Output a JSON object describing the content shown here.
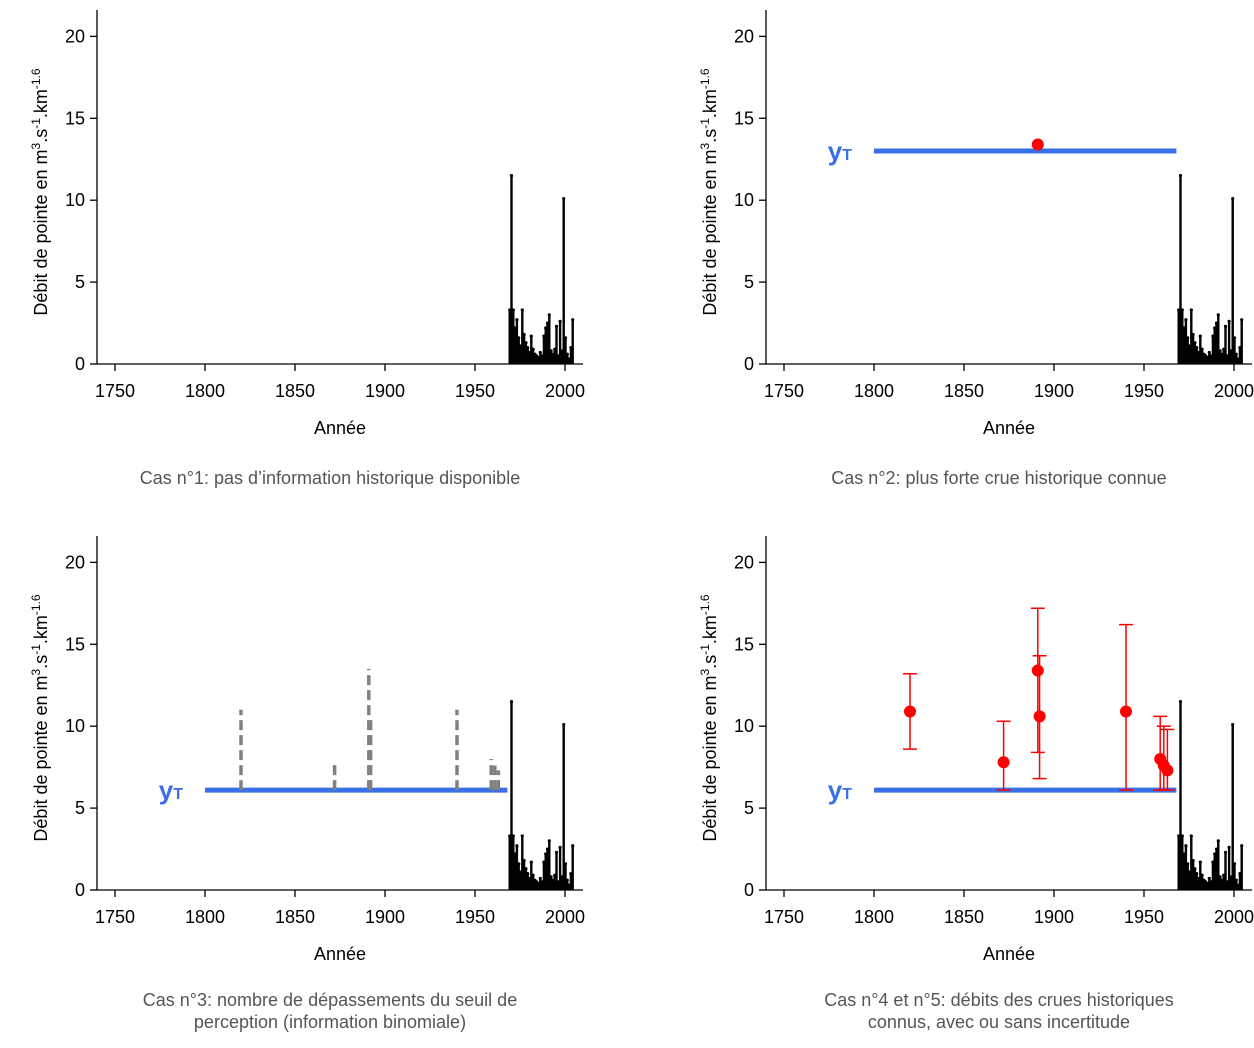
{
  "colors": {
    "observed": "#000000",
    "threshold": "#3a6fe8",
    "historic_point": "#ff0000",
    "exceedance": "#808080"
  },
  "chart_data": [
    {
      "type": "bar",
      "panel": 1,
      "caption": [
        "Cas n°1: pas d’information historique disponible"
      ],
      "xlabel": "Année",
      "ylabel": "Débit de pointe en m3.s-1.km-1.6",
      "xlim": [
        1740,
        2010
      ],
      "ylim": [
        0,
        21
      ],
      "xticks": [
        1750,
        1800,
        1850,
        1900,
        1950,
        2000
      ],
      "yticks": [
        0,
        5,
        10,
        15,
        20
      ],
      "observed": {
        "years": [
          1969,
          1970,
          1971,
          1972,
          1973,
          1974,
          1975,
          1976,
          1977,
          1978,
          1979,
          1980,
          1981,
          1982,
          1983,
          1984,
          1985,
          1986,
          1987,
          1988,
          1989,
          1990,
          1991,
          1992,
          1993,
          1994,
          1995,
          1996,
          1997,
          1998,
          1999,
          2000,
          2001,
          2002,
          2003,
          2004
        ],
        "values": [
          3.3,
          11.5,
          3.3,
          2.2,
          2.7,
          1.6,
          1.1,
          3.3,
          1.8,
          1.3,
          1.0,
          0.7,
          1.7,
          0.9,
          0.6,
          0.5,
          0.4,
          0.7,
          0.5,
          1.7,
          2.2,
          2.5,
          3.0,
          0.8,
          0.6,
          0.9,
          2.3,
          0.5,
          2.6,
          0.8,
          10.1,
          1.6,
          0.6,
          0.3,
          1.0,
          2.7
        ]
      }
    },
    {
      "type": "bar",
      "panel": 2,
      "caption": [
        "Cas n°2: plus forte crue historique connue"
      ],
      "xlabel": "Année",
      "ylabel": "Débit de pointe en m3.s-1.km-1.6",
      "xlim": [
        1740,
        2010
      ],
      "ylim": [
        0,
        21
      ],
      "xticks": [
        1750,
        1800,
        1850,
        1900,
        1950,
        2000
      ],
      "yticks": [
        0,
        5,
        10,
        15,
        20
      ],
      "threshold": {
        "label": "yT",
        "value": 13,
        "x_range": [
          1800,
          1968
        ]
      },
      "historic_points": [
        {
          "year": 1891,
          "value": 13.4
        }
      ],
      "observed": {
        "years": [
          1969,
          1970,
          1971,
          1972,
          1973,
          1974,
          1975,
          1976,
          1977,
          1978,
          1979,
          1980,
          1981,
          1982,
          1983,
          1984,
          1985,
          1986,
          1987,
          1988,
          1989,
          1990,
          1991,
          1992,
          1993,
          1994,
          1995,
          1996,
          1997,
          1998,
          1999,
          2000,
          2001,
          2002,
          2003,
          2004
        ],
        "values": [
          3.3,
          11.5,
          3.3,
          2.2,
          2.7,
          1.6,
          1.1,
          3.3,
          1.8,
          1.3,
          1.0,
          0.7,
          1.7,
          0.9,
          0.6,
          0.5,
          0.4,
          0.7,
          0.5,
          1.7,
          2.2,
          2.5,
          3.0,
          0.8,
          0.6,
          0.9,
          2.3,
          0.5,
          2.6,
          0.8,
          10.1,
          1.6,
          0.6,
          0.3,
          1.0,
          2.7
        ]
      }
    },
    {
      "type": "bar",
      "panel": 3,
      "caption": [
        "Cas n°3: nombre de dépassements du seuil de",
        "perception (information binomiale)"
      ],
      "xlabel": "Année",
      "ylabel": "Débit de pointe en m3.s-1.km-1.6",
      "xlim": [
        1740,
        2010
      ],
      "ylim": [
        0,
        21
      ],
      "xticks": [
        1750,
        1800,
        1850,
        1900,
        1950,
        2000
      ],
      "yticks": [
        0,
        5,
        10,
        15,
        20
      ],
      "threshold": {
        "label": "yT",
        "value": 6.1,
        "x_range": [
          1800,
          1968
        ]
      },
      "exceedances": [
        {
          "year": 1820,
          "value": 11.0
        },
        {
          "year": 1872,
          "value": 7.8
        },
        {
          "year": 1891,
          "value": 13.5
        },
        {
          "year": 1892,
          "value": 10.6
        },
        {
          "year": 1940,
          "value": 11.0
        },
        {
          "year": 1959,
          "value": 8.0
        },
        {
          "year": 1961,
          "value": 7.6
        },
        {
          "year": 1963,
          "value": 7.3
        }
      ],
      "observed": {
        "years": [
          1969,
          1970,
          1971,
          1972,
          1973,
          1974,
          1975,
          1976,
          1977,
          1978,
          1979,
          1980,
          1981,
          1982,
          1983,
          1984,
          1985,
          1986,
          1987,
          1988,
          1989,
          1990,
          1991,
          1992,
          1993,
          1994,
          1995,
          1996,
          1997,
          1998,
          1999,
          2000,
          2001,
          2002,
          2003,
          2004
        ],
        "values": [
          3.3,
          11.5,
          3.3,
          2.2,
          2.7,
          1.6,
          1.1,
          3.3,
          1.8,
          1.3,
          1.0,
          0.7,
          1.7,
          0.9,
          0.6,
          0.5,
          0.4,
          0.7,
          0.5,
          1.7,
          2.2,
          2.5,
          3.0,
          0.8,
          0.6,
          0.9,
          2.3,
          0.5,
          2.6,
          0.8,
          10.1,
          1.6,
          0.6,
          0.3,
          1.0,
          2.7
        ]
      }
    },
    {
      "type": "bar",
      "panel": 4,
      "caption": [
        "Cas n°4 et n°5: débits des crues historiques",
        "connus, avec ou sans incertitude"
      ],
      "xlabel": "Année",
      "ylabel": "Débit de pointe en m3.s-1.km-1.6",
      "xlim": [
        1740,
        2010
      ],
      "ylim": [
        0,
        21
      ],
      "xticks": [
        1750,
        1800,
        1850,
        1900,
        1950,
        2000
      ],
      "yticks": [
        0,
        5,
        10,
        15,
        20
      ],
      "threshold": {
        "label": "yT",
        "value": 6.1,
        "x_range": [
          1800,
          1968
        ]
      },
      "historic_points": [
        {
          "year": 1820,
          "value": 10.9,
          "low": 8.6,
          "high": 13.2
        },
        {
          "year": 1872,
          "value": 7.8,
          "low": 6.1,
          "high": 10.3
        },
        {
          "year": 1891,
          "value": 13.4,
          "low": 8.4,
          "high": 17.2
        },
        {
          "year": 1892,
          "value": 10.6,
          "low": 6.8,
          "high": 14.3
        },
        {
          "year": 1940,
          "value": 10.9,
          "low": 6.1,
          "high": 16.2
        },
        {
          "year": 1959,
          "value": 8.0,
          "low": 6.1,
          "high": 10.6
        },
        {
          "year": 1961,
          "value": 7.6,
          "low": 6.1,
          "high": 10.0
        },
        {
          "year": 1963,
          "value": 7.3,
          "low": 6.1,
          "high": 9.8
        }
      ],
      "observed": {
        "years": [
          1969,
          1970,
          1971,
          1972,
          1973,
          1974,
          1975,
          1976,
          1977,
          1978,
          1979,
          1980,
          1981,
          1982,
          1983,
          1984,
          1985,
          1986,
          1987,
          1988,
          1989,
          1990,
          1991,
          1992,
          1993,
          1994,
          1995,
          1996,
          1997,
          1998,
          1999,
          2000,
          2001,
          2002,
          2003,
          2004
        ],
        "values": [
          3.3,
          11.5,
          3.3,
          2.2,
          2.7,
          1.6,
          1.1,
          3.3,
          1.8,
          1.3,
          1.0,
          0.7,
          1.7,
          0.9,
          0.6,
          0.5,
          0.4,
          0.7,
          0.5,
          1.7,
          2.2,
          2.5,
          3.0,
          0.8,
          0.6,
          0.9,
          2.3,
          0.5,
          2.6,
          0.8,
          10.1,
          1.6,
          0.6,
          0.3,
          1.0,
          2.7
        ]
      }
    }
  ]
}
